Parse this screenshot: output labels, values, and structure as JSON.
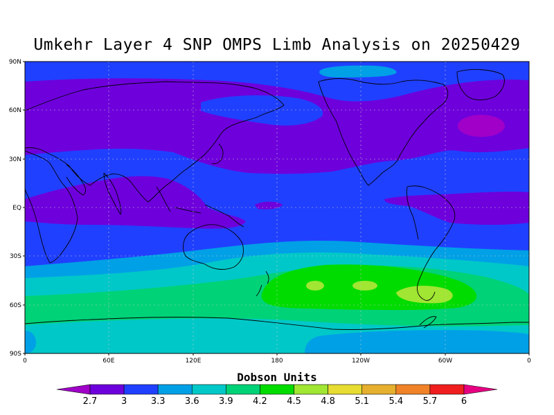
{
  "title": "Umkehr Layer 4 SNP OMPS Limb Analysis on 20250429",
  "y_ticks": [
    "90N",
    "60N",
    "30N",
    "EQ",
    "30S",
    "60S",
    "90S"
  ],
  "x_ticks": [
    "0",
    "60E",
    "120E",
    "180",
    "120W",
    "60W",
    "0"
  ],
  "colorbar": {
    "title": "Dobson Units",
    "levels": [
      "2.7",
      "3",
      "3.3",
      "3.6",
      "3.9",
      "4.2",
      "4.5",
      "4.8",
      "5.1",
      "5.4",
      "5.7",
      "6"
    ],
    "colors": [
      "#a000c8",
      "#6e00dc",
      "#2040ff",
      "#00a0e6",
      "#00c8c8",
      "#00d278",
      "#00dc00",
      "#a0e632",
      "#e6dc32",
      "#e6af2d",
      "#f08228",
      "#f01e1e",
      "#e60082"
    ]
  },
  "colors": {
    "background_field": "#2040ff",
    "coastline": "#000000",
    "grid": "#c8c8c8"
  }
}
